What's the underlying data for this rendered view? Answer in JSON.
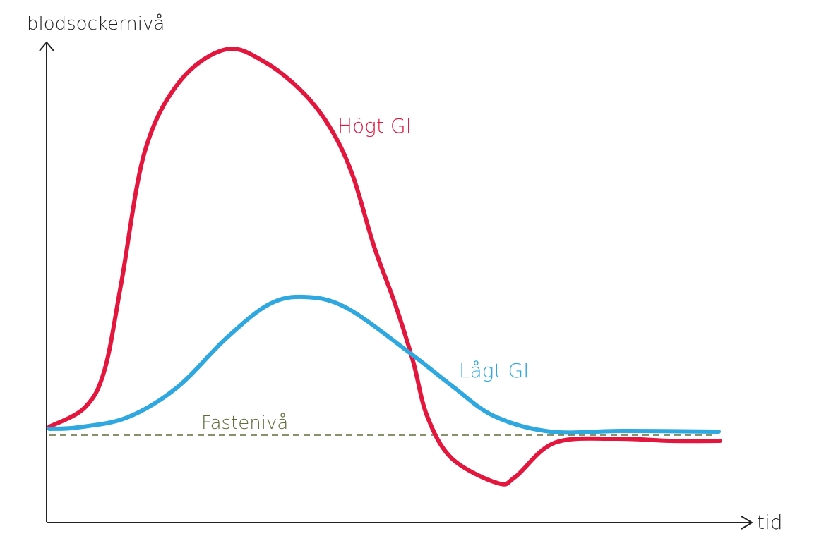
{
  "axes": {
    "y_label": "blodsockernivå",
    "x_label": "tid"
  },
  "curves": [
    {
      "label": "Högt GI"
    },
    {
      "label": "Lågt GI"
    }
  ],
  "baseline": {
    "label": "Fastenivå"
  }
}
